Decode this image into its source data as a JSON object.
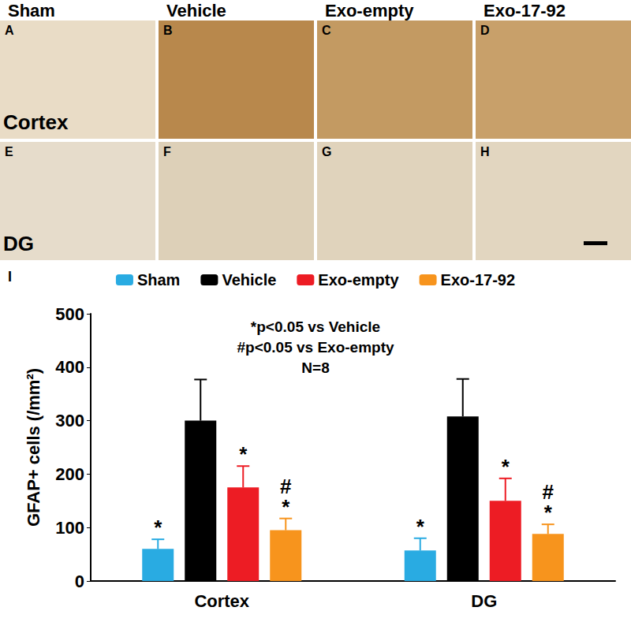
{
  "chart_data": {
    "type": "bar",
    "y_label": "GFAP+ cells (/mm²)",
    "categories": [
      "Cortex",
      "DG"
    ],
    "series": [
      {
        "name": "Sham",
        "color": "#29abe2",
        "values": [
          60,
          57
        ],
        "errors": [
          18,
          23
        ],
        "significance": [
          [
            "*"
          ],
          [
            "*"
          ]
        ]
      },
      {
        "name": "Vehicle",
        "color": "#000000",
        "values": [
          300,
          308
        ],
        "errors": [
          77,
          70
        ],
        "significance": [
          [],
          []
        ]
      },
      {
        "name": "Exo-empty",
        "color": "#ed1c24",
        "values": [
          175,
          150
        ],
        "errors": [
          40,
          42
        ],
        "significance": [
          [
            "*"
          ],
          [
            "*"
          ]
        ]
      },
      {
        "name": "Exo-17-92",
        "color": "#f7941d",
        "values": [
          95,
          88
        ],
        "errors": [
          22,
          18
        ],
        "significance": [
          [
            "#",
            "*"
          ],
          [
            "#",
            "*"
          ]
        ]
      }
    ],
    "annotations": [
      "*p<0.05 vs Vehicle",
      "#p<0.05 vs Exo-empty",
      "N=8"
    ],
    "ylim": [
      0,
      500
    ],
    "yticks": [
      0,
      100,
      200,
      300,
      400,
      500
    ],
    "grid": false,
    "legend": "top"
  },
  "figure": {
    "columns": [
      "Sham",
      "Vehicle",
      "Exo-empty",
      "Exo-17-92"
    ],
    "rows": [
      "Cortex",
      "DG"
    ],
    "panel_letters": [
      "A",
      "B",
      "C",
      "D",
      "E",
      "F",
      "G",
      "H"
    ],
    "chart_letter": "I"
  }
}
